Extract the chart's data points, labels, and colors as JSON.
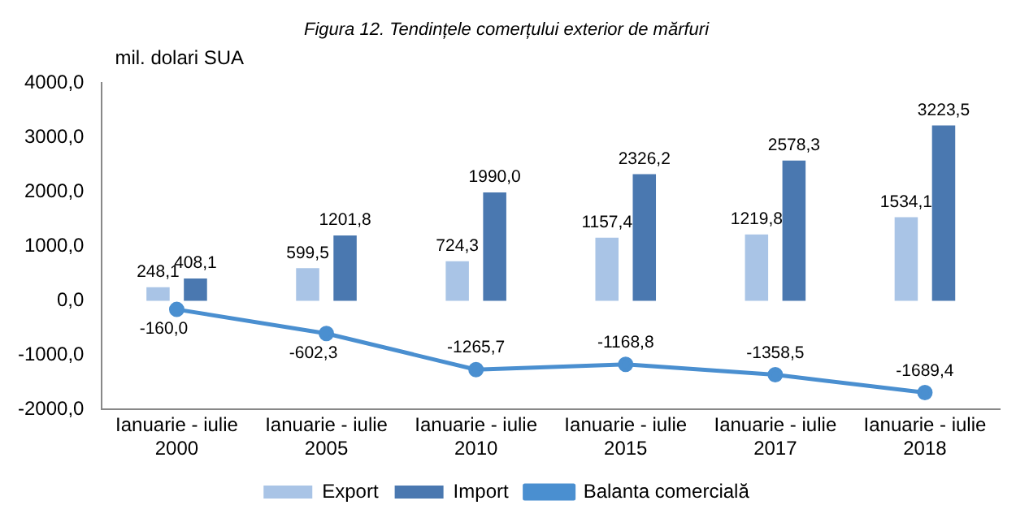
{
  "chart_data": {
    "type": "bar",
    "title": "Figura 12. Tendințele comerțului exterior de mărfuri",
    "ylabel": "mil. dolari SUA",
    "categories": [
      "Ianuarie - iulie 2000",
      "Ianuarie - iulie 2005",
      "Ianuarie - iulie 2010",
      "Ianuarie - iulie 2015",
      "Ianuarie - iulie 2017",
      "Ianuarie - iulie 2018"
    ],
    "series": [
      {
        "name": "Export",
        "color": "#a9c4e6",
        "values": [
          248.1,
          599.5,
          724.3,
          1157.4,
          1219.8,
          1534.1
        ],
        "value_labels": [
          "248,1",
          "599,5",
          "724,3",
          "1157,4",
          "1219,8",
          "1534,1"
        ]
      },
      {
        "name": "Import",
        "color": "#4a78b0",
        "values": [
          408.1,
          1201.8,
          1990.0,
          2326.2,
          2578.3,
          3223.5
        ],
        "value_labels": [
          "408,1",
          "1201,8",
          "1990,0",
          "2326,2",
          "2578,3",
          "3223,5"
        ]
      },
      {
        "name": "Balanta comercială",
        "type": "line",
        "color": "#4a8fd0",
        "values": [
          -160.0,
          -602.3,
          -1265.7,
          -1168.8,
          -1358.5,
          -1689.4
        ],
        "value_labels": [
          "-160,0",
          "-602,3",
          "-1265,7",
          "-1168,8",
          "-1358,5",
          "-1689,4"
        ]
      }
    ],
    "ylim": [
      -2000,
      4000
    ],
    "yticks": [
      {
        "value": -2000,
        "label": "-2000,0"
      },
      {
        "value": -1000,
        "label": "-1000,0"
      },
      {
        "value": 0,
        "label": "0,0"
      },
      {
        "value": 1000,
        "label": "1000,0"
      },
      {
        "value": 2000,
        "label": "2000,0"
      },
      {
        "value": 3000,
        "label": "3000,0"
      },
      {
        "value": 4000,
        "label": "4000,0"
      }
    ],
    "grid": false,
    "legend": "bottom",
    "marker": "circle",
    "line_style": "solid"
  }
}
